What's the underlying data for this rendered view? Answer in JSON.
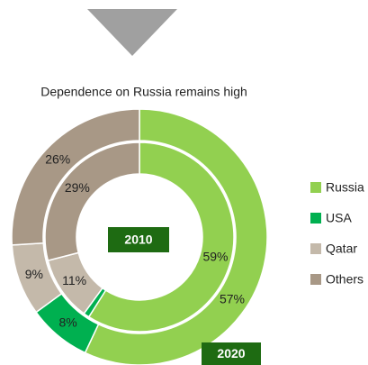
{
  "chart_data": {
    "type": "donut",
    "title": "Dependence on Russia remains high",
    "categories": [
      "Russia",
      "USA",
      "Qatar",
      "Others"
    ],
    "colors": [
      "#92d050",
      "#00b050",
      "#c4b9aa",
      "#a89886"
    ],
    "series": [
      {
        "name": "2010",
        "values": [
          59,
          1,
          11,
          29
        ],
        "value_labels": [
          "59%",
          null,
          "11%",
          "29%"
        ]
      },
      {
        "name": "2020",
        "values": [
          57,
          8,
          9,
          26
        ],
        "value_labels": [
          "57%",
          "8%",
          "9%",
          "26%"
        ]
      }
    ],
    "legend": "right"
  }
}
